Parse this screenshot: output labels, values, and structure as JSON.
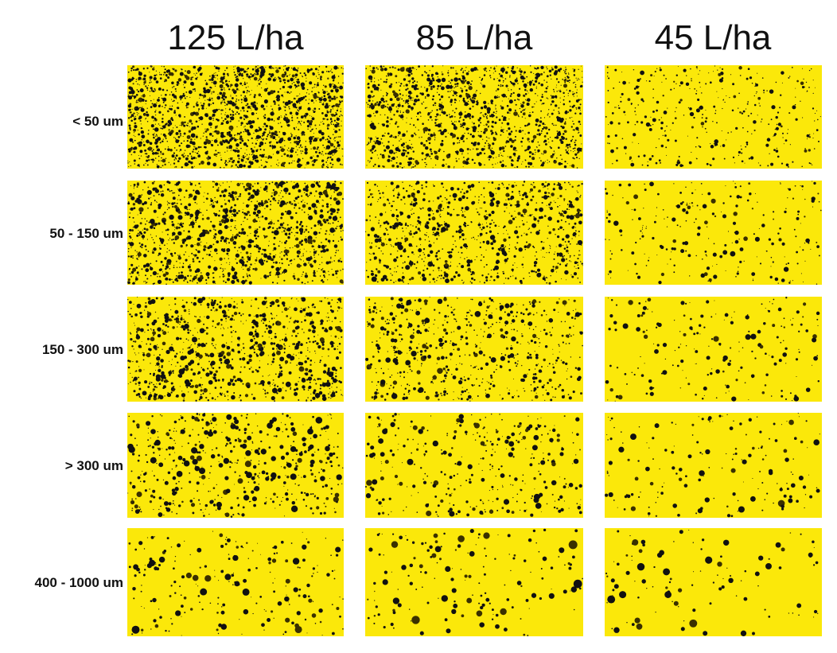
{
  "columns": [
    "125 L/ha",
    "85 L/ha",
    "45 L/ha"
  ],
  "rows": [
    "< 50 um",
    "50 - 150 um",
    "150 - 300 um",
    "> 300 um",
    "400 - 1000 um"
  ]
}
